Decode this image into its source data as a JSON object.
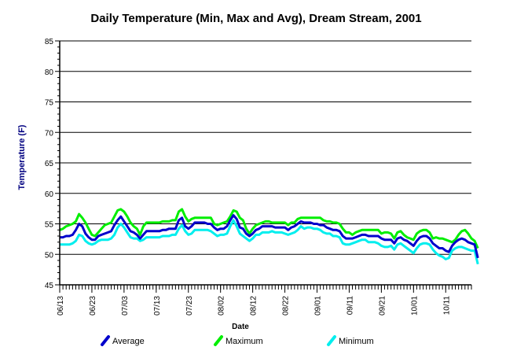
{
  "chart_data": {
    "type": "line",
    "title": "Daily Temperature (Min, Max and Avg), Dream Stream, 2001",
    "xlabel": "Date",
    "ylabel": "Temperature (F)",
    "ylim": [
      45,
      85
    ],
    "yticks": [
      45,
      50,
      55,
      60,
      65,
      70,
      75,
      80,
      85
    ],
    "grid": true,
    "legend_position": "bottom",
    "x_start_date": "2001-06-13",
    "x_end_date": "2001-10-19",
    "xtick_labels": [
      "06/13",
      "06/23",
      "07/03",
      "07/13",
      "07/23",
      "08/02",
      "08/12",
      "08/22",
      "09/01",
      "09/11",
      "09/21",
      "10/01",
      "10/11"
    ],
    "series": [
      {
        "name": "Maximum",
        "color": "#00ee00",
        "values": [
          54,
          54.2,
          54.6,
          54.8,
          55,
          55.4,
          56.6,
          56,
          55.2,
          54.2,
          53.2,
          53,
          53.6,
          54.2,
          54.8,
          55,
          55.2,
          56.2,
          57.2,
          57.4,
          57,
          56.2,
          55.2,
          54.6,
          54.2,
          53.2,
          54.6,
          55.2,
          55.2,
          55.2,
          55.2,
          55.2,
          55.4,
          55.4,
          55.4,
          55.6,
          55.6,
          57,
          57.4,
          56.2,
          55.4,
          55.8,
          56,
          56,
          56,
          56,
          56,
          56,
          55,
          54.8,
          55,
          55.2,
          55.4,
          56.2,
          57.2,
          57,
          56,
          55.6,
          54.2,
          53.4,
          54.2,
          54.8,
          55,
          55.2,
          55.4,
          55.4,
          55.2,
          55.2,
          55.2,
          55.2,
          55.2,
          54.8,
          55.2,
          55.2,
          55.8,
          56,
          56,
          56,
          56,
          56,
          56,
          56,
          55.6,
          55.4,
          55.4,
          55.2,
          55.2,
          55,
          54.2,
          53.6,
          53.6,
          53.2,
          53.6,
          53.8,
          54,
          54,
          54,
          54,
          54,
          54,
          53.4,
          53.6,
          53.6,
          53.4,
          52.6,
          53.6,
          53.8,
          53.2,
          52.8,
          52.6,
          52.4,
          53.4,
          53.8,
          54,
          54,
          53.6,
          52.6,
          52.8,
          52.6,
          52.6,
          52.4,
          52.2,
          52,
          52.4,
          53.2,
          53.8,
          54,
          53.4,
          52.6,
          52.2,
          51
        ],
        "width": 3
      },
      {
        "name": "Average",
        "color": "#0000cc",
        "values": [
          52.8,
          52.8,
          53,
          53,
          53.2,
          54,
          55,
          54.6,
          53.4,
          52.8,
          52.4,
          52.4,
          53,
          53.2,
          53.4,
          53.6,
          53.8,
          54.8,
          55.6,
          56.2,
          55.4,
          54.6,
          53.8,
          53.6,
          53.2,
          52.6,
          53.2,
          53.8,
          53.8,
          53.8,
          53.8,
          53.8,
          54,
          54,
          54.2,
          54.2,
          54.2,
          55.6,
          56,
          54.6,
          54.2,
          54.6,
          55.2,
          55.2,
          55.2,
          55.2,
          55,
          55,
          54.4,
          54,
          54.2,
          54.2,
          54.6,
          55.6,
          56.4,
          55.8,
          54.4,
          54.2,
          53.4,
          53,
          53.4,
          54,
          54.2,
          54.6,
          54.6,
          54.6,
          54.6,
          54.4,
          54.4,
          54.4,
          54.4,
          54,
          54.4,
          54.6,
          55,
          55.4,
          55.2,
          55.2,
          55.2,
          55,
          55,
          54.8,
          54.8,
          54.4,
          54.2,
          54,
          54,
          53.8,
          53,
          52.6,
          52.6,
          52.6,
          52.8,
          53,
          53.2,
          53.2,
          53,
          53,
          53,
          53,
          52.6,
          52.4,
          52.4,
          52.4,
          51.8,
          52.6,
          52.8,
          52.4,
          52.2,
          51.8,
          51.4,
          52.2,
          52.8,
          53,
          53,
          52.6,
          51.8,
          51.4,
          51,
          51,
          50.6,
          50.4,
          51.4,
          52,
          52.4,
          52.6,
          52.4,
          52,
          51.8,
          51.6,
          49.4
        ],
        "width": 3
      },
      {
        "name": "Minimum",
        "color": "#00eeee",
        "values": [
          51.6,
          51.6,
          51.6,
          51.6,
          51.8,
          52.2,
          53.2,
          53,
          52.2,
          51.8,
          51.6,
          51.8,
          52.2,
          52.4,
          52.4,
          52.4,
          52.6,
          53.2,
          54.4,
          55,
          54.4,
          53.6,
          52.8,
          52.6,
          52.6,
          52.2,
          52.4,
          52.8,
          52.8,
          52.8,
          52.8,
          52.8,
          53,
          53,
          53,
          53.2,
          53.2,
          54.2,
          54.8,
          53.8,
          53.2,
          53.4,
          54,
          54,
          54,
          54,
          54,
          53.8,
          53.4,
          53,
          53.2,
          53.2,
          53.4,
          54.6,
          55.6,
          54.6,
          53.4,
          53,
          52.6,
          52.2,
          52.6,
          53.2,
          53.2,
          53.6,
          53.6,
          53.6,
          53.8,
          53.6,
          53.6,
          53.6,
          53.4,
          53.2,
          53.4,
          53.6,
          54,
          54.6,
          54.2,
          54.4,
          54.4,
          54.2,
          54.2,
          54,
          53.6,
          53.4,
          53.4,
          53,
          53,
          52.8,
          51.8,
          51.6,
          51.6,
          51.8,
          52,
          52.2,
          52.4,
          52.4,
          52,
          52,
          52,
          51.8,
          51.4,
          51.2,
          51.2,
          51.4,
          50.8,
          51.6,
          51.8,
          51.4,
          51,
          50.6,
          50.2,
          51,
          51.6,
          51.8,
          51.8,
          51.6,
          50.8,
          50.2,
          49.8,
          49.6,
          49.2,
          49.4,
          50.6,
          51,
          51.2,
          51.2,
          51,
          50.8,
          50.6,
          50.6,
          48.4
        ],
        "width": 3
      }
    ],
    "legend_order": [
      "Average",
      "Maximum",
      "Minimum"
    ]
  }
}
